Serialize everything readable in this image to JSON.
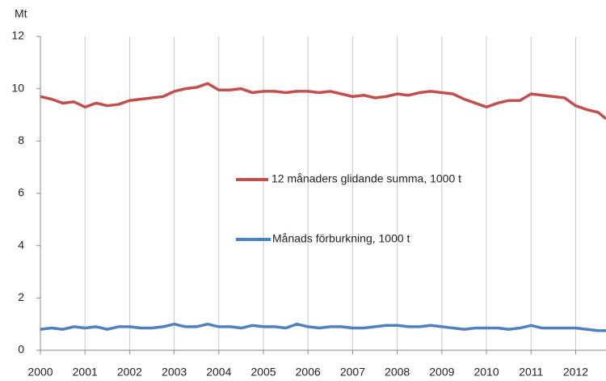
{
  "chart_data": {
    "type": "line",
    "y_label": "Mt",
    "x": [
      2000,
      2000.25,
      2000.5,
      2000.75,
      2001,
      2001.25,
      2001.5,
      2001.75,
      2002,
      2002.25,
      2002.5,
      2002.75,
      2003,
      2003.25,
      2003.5,
      2003.75,
      2004,
      2004.25,
      2004.5,
      2004.75,
      2005,
      2005.25,
      2005.5,
      2005.75,
      2006,
      2006.25,
      2006.5,
      2006.75,
      2007,
      2007.25,
      2007.5,
      2007.75,
      2008,
      2008.25,
      2008.5,
      2008.75,
      2009,
      2009.25,
      2009.5,
      2009.75,
      2010,
      2010.25,
      2010.5,
      2010.75,
      2011,
      2011.25,
      2011.5,
      2011.75,
      2012,
      2012.25,
      2012.5,
      2012.68
    ],
    "series": [
      {
        "name": "12 månaders glidande summa, 1000 t",
        "color": "#c0504d",
        "values": [
          9.7,
          9.6,
          9.45,
          9.5,
          9.3,
          9.45,
          9.35,
          9.4,
          9.55,
          9.6,
          9.65,
          9.7,
          9.9,
          10.0,
          10.05,
          10.2,
          9.95,
          9.95,
          10.0,
          9.85,
          9.9,
          9.9,
          9.85,
          9.9,
          9.9,
          9.85,
          9.9,
          9.8,
          9.7,
          9.75,
          9.65,
          9.7,
          9.8,
          9.75,
          9.85,
          9.9,
          9.85,
          9.8,
          9.6,
          9.45,
          9.3,
          9.45,
          9.55,
          9.55,
          9.8,
          9.75,
          9.7,
          9.65,
          9.35,
          9.2,
          9.1,
          8.85
        ]
      },
      {
        "name": "Månads förburkning, 1000 t",
        "color": "#4f81bd",
        "values": [
          0.8,
          0.85,
          0.8,
          0.9,
          0.85,
          0.9,
          0.8,
          0.9,
          0.9,
          0.85,
          0.85,
          0.9,
          1.0,
          0.9,
          0.9,
          1.0,
          0.9,
          0.9,
          0.85,
          0.95,
          0.9,
          0.9,
          0.85,
          1.0,
          0.9,
          0.85,
          0.9,
          0.9,
          0.85,
          0.85,
          0.9,
          0.95,
          0.95,
          0.9,
          0.9,
          0.95,
          0.9,
          0.85,
          0.8,
          0.85,
          0.85,
          0.85,
          0.8,
          0.85,
          0.95,
          0.85,
          0.85,
          0.85,
          0.85,
          0.8,
          0.75,
          0.75
        ]
      }
    ],
    "xlim": [
      2000,
      2012.68
    ],
    "xticks": [
      2000,
      2001,
      2002,
      2003,
      2004,
      2005,
      2006,
      2007,
      2008,
      2009,
      2010,
      2011,
      2012
    ],
    "ylim": [
      0,
      12
    ],
    "yticks": [
      0,
      2,
      4,
      6,
      8,
      10,
      12
    ],
    "grid": "x"
  }
}
